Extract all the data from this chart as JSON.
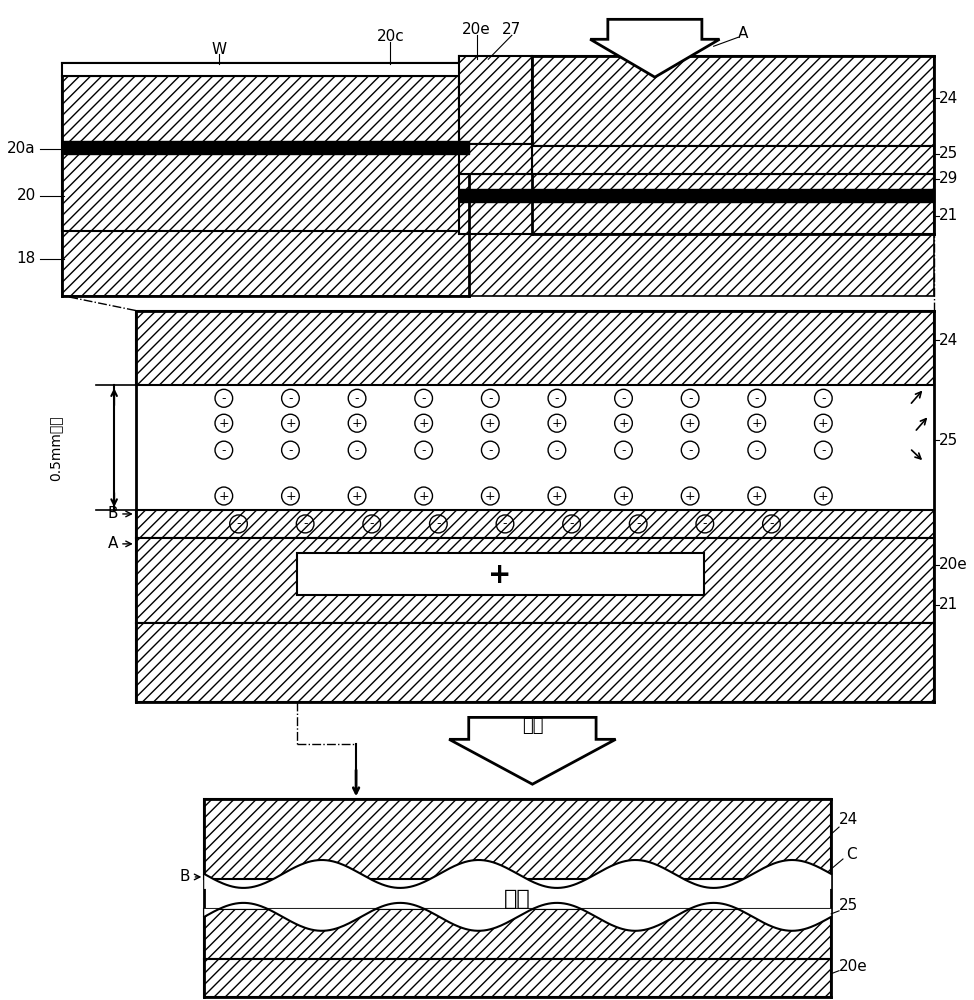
{
  "bg_color": "#ffffff",
  "chinese_press": "按压",
  "chinese_sheet": "薄片",
  "mm_label": "0.5mm以下"
}
